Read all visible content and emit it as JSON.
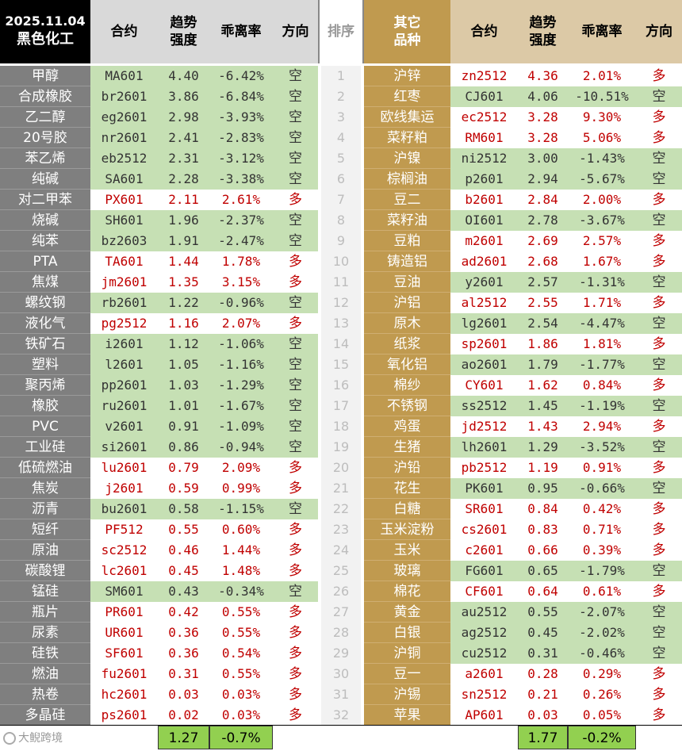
{
  "header": {
    "date": "2025.11.04",
    "left_category": "黑色化工",
    "col_contract": "合约",
    "col_strength": "趋势\n强度",
    "col_deviation": "乖离率",
    "col_direction": "方向",
    "col_rank": "排序",
    "right_category": "其它\n品种"
  },
  "left_rows": [
    {
      "name": "甲醇",
      "contract": "MA601",
      "strength": "4.40",
      "deviation": "-6.42%",
      "direction": "空"
    },
    {
      "name": "合成橡胶",
      "contract": "br2601",
      "strength": "3.86",
      "deviation": "-6.84%",
      "direction": "空"
    },
    {
      "name": "乙二醇",
      "contract": "eg2601",
      "strength": "2.98",
      "deviation": "-3.93%",
      "direction": "空"
    },
    {
      "name": "20号胶",
      "contract": "nr2601",
      "strength": "2.41",
      "deviation": "-2.83%",
      "direction": "空"
    },
    {
      "name": "苯乙烯",
      "contract": "eb2512",
      "strength": "2.31",
      "deviation": "-3.12%",
      "direction": "空"
    },
    {
      "name": "纯碱",
      "contract": "SA601",
      "strength": "2.28",
      "deviation": "-3.38%",
      "direction": "空"
    },
    {
      "name": "对二甲苯",
      "contract": "PX601",
      "strength": "2.11",
      "deviation": "2.61%",
      "direction": "多"
    },
    {
      "name": "烧碱",
      "contract": "SH601",
      "strength": "1.96",
      "deviation": "-2.37%",
      "direction": "空"
    },
    {
      "name": "纯苯",
      "contract": "bz2603",
      "strength": "1.91",
      "deviation": "-2.47%",
      "direction": "空"
    },
    {
      "name": "PTA",
      "contract": "TA601",
      "strength": "1.44",
      "deviation": "1.78%",
      "direction": "多"
    },
    {
      "name": "焦煤",
      "contract": "jm2601",
      "strength": "1.35",
      "deviation": "3.15%",
      "direction": "多"
    },
    {
      "name": "螺纹钢",
      "contract": "rb2601",
      "strength": "1.22",
      "deviation": "-0.96%",
      "direction": "空"
    },
    {
      "name": "液化气",
      "contract": "pg2512",
      "strength": "1.16",
      "deviation": "2.07%",
      "direction": "多"
    },
    {
      "name": "铁矿石",
      "contract": "i2601",
      "strength": "1.12",
      "deviation": "-1.06%",
      "direction": "空"
    },
    {
      "name": "塑料",
      "contract": "l2601",
      "strength": "1.05",
      "deviation": "-1.16%",
      "direction": "空"
    },
    {
      "name": "聚丙烯",
      "contract": "pp2601",
      "strength": "1.03",
      "deviation": "-1.29%",
      "direction": "空"
    },
    {
      "name": "橡胶",
      "contract": "ru2601",
      "strength": "1.01",
      "deviation": "-1.67%",
      "direction": "空"
    },
    {
      "name": "PVC",
      "contract": "v2601",
      "strength": "0.91",
      "deviation": "-1.09%",
      "direction": "空"
    },
    {
      "name": "工业硅",
      "contract": "si2601",
      "strength": "0.86",
      "deviation": "-0.94%",
      "direction": "空"
    },
    {
      "name": "低硫燃油",
      "contract": "lu2601",
      "strength": "0.79",
      "deviation": "2.09%",
      "direction": "多"
    },
    {
      "name": "焦炭",
      "contract": "j2601",
      "strength": "0.59",
      "deviation": "0.99%",
      "direction": "多"
    },
    {
      "name": "沥青",
      "contract": "bu2601",
      "strength": "0.58",
      "deviation": "-1.15%",
      "direction": "空"
    },
    {
      "name": "短纤",
      "contract": "PF512",
      "strength": "0.55",
      "deviation": "0.60%",
      "direction": "多"
    },
    {
      "name": "原油",
      "contract": "sc2512",
      "strength": "0.46",
      "deviation": "1.44%",
      "direction": "多"
    },
    {
      "name": "碳酸锂",
      "contract": "lc2601",
      "strength": "0.45",
      "deviation": "1.48%",
      "direction": "多"
    },
    {
      "name": "锰硅",
      "contract": "SM601",
      "strength": "0.43",
      "deviation": "-0.34%",
      "direction": "空"
    },
    {
      "name": "瓶片",
      "contract": "PR601",
      "strength": "0.42",
      "deviation": "0.55%",
      "direction": "多"
    },
    {
      "name": "尿素",
      "contract": "UR601",
      "strength": "0.36",
      "deviation": "0.55%",
      "direction": "多"
    },
    {
      "name": "硅铁",
      "contract": "SF601",
      "strength": "0.36",
      "deviation": "0.54%",
      "direction": "多"
    },
    {
      "name": "燃油",
      "contract": "fu2601",
      "strength": "0.31",
      "deviation": "0.55%",
      "direction": "多"
    },
    {
      "name": "热卷",
      "contract": "hc2601",
      "strength": "0.03",
      "deviation": "0.03%",
      "direction": "多"
    },
    {
      "name": "多晶硅",
      "contract": "ps2601",
      "strength": "0.02",
      "deviation": "0.03%",
      "direction": "多"
    }
  ],
  "ranks": [
    "1",
    "2",
    "3",
    "4",
    "5",
    "6",
    "7",
    "8",
    "9",
    "10",
    "11",
    "12",
    "13",
    "14",
    "15",
    "16",
    "17",
    "18",
    "19",
    "20",
    "21",
    "22",
    "23",
    "24",
    "25",
    "26",
    "27",
    "28",
    "29",
    "30",
    "31",
    "32"
  ],
  "right_rows": [
    {
      "name": "沪锌",
      "contract": "zn2512",
      "strength": "4.36",
      "deviation": "2.01%",
      "direction": "多"
    },
    {
      "name": "红枣",
      "contract": "CJ601",
      "strength": "4.06",
      "deviation": "-10.51%",
      "direction": "空"
    },
    {
      "name": "欧线集运",
      "contract": "ec2512",
      "strength": "3.28",
      "deviation": "9.30%",
      "direction": "多"
    },
    {
      "name": "菜籽粕",
      "contract": "RM601",
      "strength": "3.28",
      "deviation": "5.06%",
      "direction": "多"
    },
    {
      "name": "沪镍",
      "contract": "ni2512",
      "strength": "3.00",
      "deviation": "-1.43%",
      "direction": "空"
    },
    {
      "name": "棕榈油",
      "contract": "p2601",
      "strength": "2.94",
      "deviation": "-5.67%",
      "direction": "空"
    },
    {
      "name": "豆二",
      "contract": "b2601",
      "strength": "2.84",
      "deviation": "2.00%",
      "direction": "多"
    },
    {
      "name": "菜籽油",
      "contract": "OI601",
      "strength": "2.78",
      "deviation": "-3.67%",
      "direction": "空"
    },
    {
      "name": "豆粕",
      "contract": "m2601",
      "strength": "2.69",
      "deviation": "2.57%",
      "direction": "多"
    },
    {
      "name": "铸造铝",
      "contract": "ad2601",
      "strength": "2.68",
      "deviation": "1.67%",
      "direction": "多"
    },
    {
      "name": "豆油",
      "contract": "y2601",
      "strength": "2.57",
      "deviation": "-1.31%",
      "direction": "空"
    },
    {
      "name": "沪铝",
      "contract": "al2512",
      "strength": "2.55",
      "deviation": "1.71%",
      "direction": "多"
    },
    {
      "name": "原木",
      "contract": "lg2601",
      "strength": "2.54",
      "deviation": "-4.47%",
      "direction": "空"
    },
    {
      "name": "纸浆",
      "contract": "sp2601",
      "strength": "1.86",
      "deviation": "1.81%",
      "direction": "多"
    },
    {
      "name": "氧化铝",
      "contract": "ao2601",
      "strength": "1.79",
      "deviation": "-1.77%",
      "direction": "空"
    },
    {
      "name": "棉纱",
      "contract": "CY601",
      "strength": "1.62",
      "deviation": "0.84%",
      "direction": "多"
    },
    {
      "name": "不锈钢",
      "contract": "ss2512",
      "strength": "1.45",
      "deviation": "-1.19%",
      "direction": "空"
    },
    {
      "name": "鸡蛋",
      "contract": "jd2512",
      "strength": "1.43",
      "deviation": "2.94%",
      "direction": "多"
    },
    {
      "name": "生猪",
      "contract": "lh2601",
      "strength": "1.29",
      "deviation": "-3.52%",
      "direction": "空"
    },
    {
      "name": "沪铅",
      "contract": "pb2512",
      "strength": "1.19",
      "deviation": "0.91%",
      "direction": "多"
    },
    {
      "name": "花生",
      "contract": "PK601",
      "strength": "0.95",
      "deviation": "-0.66%",
      "direction": "空"
    },
    {
      "name": "白糖",
      "contract": "SR601",
      "strength": "0.84",
      "deviation": "0.42%",
      "direction": "多"
    },
    {
      "name": "玉米淀粉",
      "contract": "cs2601",
      "strength": "0.83",
      "deviation": "0.71%",
      "direction": "多"
    },
    {
      "name": "玉米",
      "contract": "c2601",
      "strength": "0.66",
      "deviation": "0.39%",
      "direction": "多"
    },
    {
      "name": "玻璃",
      "contract": "FG601",
      "strength": "0.65",
      "deviation": "-1.79%",
      "direction": "空"
    },
    {
      "name": "棉花",
      "contract": "CF601",
      "strength": "0.64",
      "deviation": "0.61%",
      "direction": "多"
    },
    {
      "name": "黄金",
      "contract": "au2512",
      "strength": "0.55",
      "deviation": "-2.07%",
      "direction": "空"
    },
    {
      "name": "白银",
      "contract": "ag2512",
      "strength": "0.45",
      "deviation": "-2.02%",
      "direction": "空"
    },
    {
      "name": "沪铜",
      "contract": "cu2512",
      "strength": "0.31",
      "deviation": "-0.46%",
      "direction": "空"
    },
    {
      "name": "豆一",
      "contract": "a2601",
      "strength": "0.28",
      "deviation": "0.29%",
      "direction": "多"
    },
    {
      "name": "沪锡",
      "contract": "sn2512",
      "strength": "0.21",
      "deviation": "0.26%",
      "direction": "多"
    },
    {
      "name": "苹果",
      "contract": "AP601",
      "strength": "0.03",
      "deviation": "0.05%",
      "direction": "多"
    }
  ],
  "footer": {
    "left_avg_strength": "1.27",
    "left_avg_deviation": "-0.7%",
    "right_avg_strength": "1.77",
    "right_avg_deviation": "-0.2%",
    "brand_text": "大鲵跨境"
  },
  "colors": {
    "short_bg": "#c6e0b4",
    "long_text": "#c00000",
    "left_category_bg": "#7f7f7f",
    "right_category_bg": "#c09a4f",
    "footer_bg": "#92d050"
  }
}
